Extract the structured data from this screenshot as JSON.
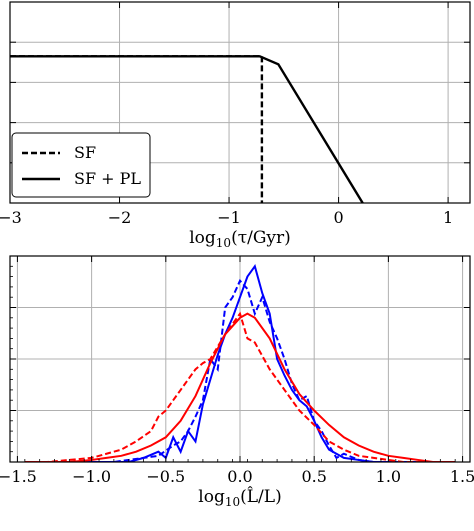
{
  "chart_data": [
    {
      "type": "line",
      "xlabel": "log10(τ/Gyr)",
      "xlim": [
        -3.0,
        1.2
      ],
      "ylim": [
        0.0,
        1.0
      ],
      "x_ticks": [
        -3,
        -2,
        -1,
        0,
        1
      ],
      "x_tick_labels": [
        "−3",
        "−2",
        "−1",
        "0",
        "1"
      ],
      "y_ticks": [
        0.8,
        0.6,
        0.4,
        0.2
      ],
      "grid": true,
      "legend_position": "lower-left",
      "legend": [
        "SF",
        "SF + PL"
      ],
      "series": [
        {
          "name": "SF",
          "style": "dashed",
          "color": "#000000",
          "x": [
            -3.0,
            -0.7,
            -0.7
          ],
          "y": [
            0.73,
            0.73,
            0.0
          ]
        },
        {
          "name": "SF + PL",
          "style": "solid",
          "color": "#000000",
          "x": [
            -3.0,
            -0.72,
            -0.55,
            0.22
          ],
          "y": [
            0.73,
            0.73,
            0.69,
            0.0
          ]
        }
      ]
    },
    {
      "type": "line",
      "xlabel": "log10(L̂/L)",
      "xlim": [
        -1.55,
        1.55
      ],
      "ylim": [
        0.0,
        1.0
      ],
      "x_ticks": [
        -1.5,
        -1.0,
        -0.5,
        0.0,
        0.5,
        1.0,
        1.5
      ],
      "x_tick_labels": [
        "−1.5",
        "−1.0",
        "−0.5",
        "0.0",
        "0.5",
        "1.0",
        "1.5"
      ],
      "y_ticks": [
        0.0,
        0.25,
        0.5,
        0.75,
        1.0
      ],
      "grid": true,
      "series": [
        {
          "color": "#0000ff",
          "style": "solid",
          "x": [
            -1.45,
            -1.35,
            -1.25,
            -1.15,
            -1.05,
            -0.95,
            -0.85,
            -0.75,
            -0.65,
            -0.55,
            -0.5,
            -0.45,
            -0.4,
            -0.35,
            -0.3,
            -0.25,
            -0.2,
            -0.15,
            -0.1,
            -0.05,
            0.0,
            0.05,
            0.1,
            0.15,
            0.2,
            0.25,
            0.3,
            0.35,
            0.4,
            0.45,
            0.5,
            0.55,
            0.6,
            0.65,
            0.7,
            0.8,
            0.9,
            1.0,
            1.1,
            1.2,
            1.3,
            1.45
          ],
          "y": [
            0.0,
            0.0,
            0.0,
            0.0,
            0.0,
            0.0,
            0.0,
            0.0,
            0.02,
            0.05,
            0.02,
            0.12,
            0.05,
            0.15,
            0.1,
            0.28,
            0.4,
            0.52,
            0.62,
            0.7,
            0.8,
            0.9,
            0.95,
            0.82,
            0.72,
            0.5,
            0.42,
            0.35,
            0.3,
            0.27,
            0.2,
            0.12,
            0.06,
            0.04,
            0.02,
            0.01,
            0.0,
            0.0,
            0.0,
            0.0,
            0.0,
            0.0
          ]
        },
        {
          "color": "#0000ff",
          "style": "dashed",
          "x": [
            -1.45,
            -1.35,
            -1.25,
            -1.15,
            -1.05,
            -0.95,
            -0.85,
            -0.75,
            -0.65,
            -0.55,
            -0.45,
            -0.4,
            -0.35,
            -0.3,
            -0.25,
            -0.2,
            -0.15,
            -0.1,
            -0.05,
            0.0,
            0.05,
            0.1,
            0.15,
            0.2,
            0.25,
            0.3,
            0.35,
            0.4,
            0.45,
            0.5,
            0.55,
            0.6,
            0.65,
            0.7,
            0.8,
            0.9,
            1.0,
            1.1,
            1.2,
            1.3,
            1.45
          ],
          "y": [
            0.0,
            0.0,
            0.0,
            0.0,
            0.0,
            0.0,
            0.0,
            0.01,
            0.02,
            0.03,
            0.08,
            0.1,
            0.15,
            0.22,
            0.3,
            0.5,
            0.45,
            0.75,
            0.8,
            0.88,
            0.84,
            0.72,
            0.8,
            0.68,
            0.6,
            0.5,
            0.38,
            0.3,
            0.32,
            0.2,
            0.15,
            0.08,
            0.02,
            0.04,
            0.01,
            0.0,
            0.0,
            0.0,
            0.0,
            0.0,
            0.0
          ]
        },
        {
          "color": "#ff0000",
          "style": "solid",
          "x": [
            -1.45,
            -1.3,
            -1.15,
            -1.0,
            -0.9,
            -0.8,
            -0.7,
            -0.6,
            -0.5,
            -0.4,
            -0.3,
            -0.2,
            -0.1,
            0.0,
            0.05,
            0.1,
            0.2,
            0.3,
            0.4,
            0.5,
            0.6,
            0.7,
            0.8,
            0.9,
            1.0,
            1.1,
            1.2,
            1.3,
            1.45
          ],
          "y": [
            0.0,
            0.0,
            0.0,
            0.01,
            0.02,
            0.03,
            0.05,
            0.08,
            0.12,
            0.2,
            0.32,
            0.48,
            0.62,
            0.7,
            0.72,
            0.7,
            0.6,
            0.45,
            0.33,
            0.25,
            0.18,
            0.12,
            0.08,
            0.05,
            0.03,
            0.02,
            0.01,
            0.0,
            0.0
          ]
        },
        {
          "color": "#ff0000",
          "style": "dashed",
          "x": [
            -1.45,
            -1.3,
            -1.15,
            -1.0,
            -0.9,
            -0.8,
            -0.7,
            -0.6,
            -0.55,
            -0.5,
            -0.45,
            -0.4,
            -0.35,
            -0.3,
            -0.25,
            -0.2,
            -0.1,
            0.0,
            0.05,
            0.1,
            0.2,
            0.3,
            0.4,
            0.5,
            0.6,
            0.7,
            0.8,
            0.9,
            1.0,
            1.1,
            1.2,
            1.3,
            1.45
          ],
          "y": [
            0.0,
            0.0,
            0.01,
            0.02,
            0.04,
            0.06,
            0.1,
            0.15,
            0.22,
            0.25,
            0.3,
            0.35,
            0.4,
            0.45,
            0.48,
            0.5,
            0.62,
            0.72,
            0.6,
            0.58,
            0.45,
            0.35,
            0.25,
            0.18,
            0.1,
            0.06,
            0.03,
            0.02,
            0.01,
            0.0,
            0.0,
            0.0,
            0.0
          ]
        }
      ]
    }
  ]
}
